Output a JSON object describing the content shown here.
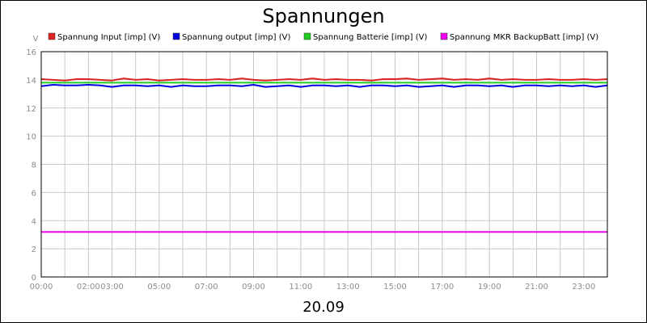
{
  "chart_data": {
    "type": "line",
    "title": "Spannungen",
    "xlabel": "20.09",
    "ylabel": "V",
    "xlim": [
      0,
      24
    ],
    "ylim": [
      0,
      16
    ],
    "grid": true,
    "legend_position": "top",
    "y_ticks": [
      0,
      2,
      4,
      6,
      8,
      10,
      12,
      14,
      16
    ],
    "x_ticks": [
      {
        "label": "00:00",
        "value": 0
      },
      {
        "label": "02:00",
        "value": 2
      },
      {
        "label": "03:00",
        "value": 3
      },
      {
        "label": "05:00",
        "value": 5
      },
      {
        "label": "07:00",
        "value": 7
      },
      {
        "label": "09:00",
        "value": 9
      },
      {
        "label": "11:00",
        "value": 11
      },
      {
        "label": "13:00",
        "value": 13
      },
      {
        "label": "15:00",
        "value": 15
      },
      {
        "label": "17:00",
        "value": 17
      },
      {
        "label": "19:00",
        "value": 19
      },
      {
        "label": "21:00",
        "value": 21
      },
      {
        "label": "23:00",
        "value": 23
      }
    ],
    "x_hours": [
      0,
      0.5,
      1,
      1.5,
      2,
      2.5,
      3,
      3.5,
      4,
      4.5,
      5,
      5.5,
      6,
      6.5,
      7,
      7.5,
      8,
      8.5,
      9,
      9.5,
      10,
      10.5,
      11,
      11.5,
      12,
      12.5,
      13,
      13.5,
      14,
      14.5,
      15,
      15.5,
      16,
      16.5,
      17,
      17.5,
      18,
      18.5,
      19,
      19.5,
      20,
      20.5,
      21,
      21.5,
      22,
      22.5,
      23,
      23.5,
      24
    ],
    "series": [
      {
        "name": "Spannung Input [imp] (V)",
        "color": "#dd2222",
        "values": [
          14.05,
          14.0,
          13.95,
          14.05,
          14.05,
          14.0,
          13.95,
          14.1,
          14.0,
          14.05,
          13.95,
          14.0,
          14.05,
          14.0,
          14.0,
          14.05,
          14.0,
          14.1,
          14.0,
          13.95,
          14.0,
          14.05,
          14.0,
          14.1,
          14.0,
          14.05,
          14.0,
          14.0,
          13.95,
          14.05,
          14.05,
          14.1,
          14.0,
          14.05,
          14.1,
          14.0,
          14.05,
          14.0,
          14.1,
          14.0,
          14.05,
          14.0,
          14.0,
          14.05,
          14.0,
          14.0,
          14.05,
          14.0,
          14.05
        ]
      },
      {
        "name": "Spannung output [imp] (V)",
        "color": "#0000dd",
        "values": [
          13.55,
          13.65,
          13.6,
          13.6,
          13.65,
          13.6,
          13.5,
          13.6,
          13.6,
          13.55,
          13.6,
          13.5,
          13.6,
          13.55,
          13.55,
          13.6,
          13.6,
          13.55,
          13.65,
          13.5,
          13.55,
          13.6,
          13.5,
          13.6,
          13.6,
          13.55,
          13.6,
          13.5,
          13.6,
          13.6,
          13.55,
          13.6,
          13.5,
          13.55,
          13.6,
          13.5,
          13.6,
          13.6,
          13.55,
          13.6,
          13.5,
          13.6,
          13.6,
          13.55,
          13.6,
          13.55,
          13.6,
          13.5,
          13.6
        ]
      },
      {
        "name": "Spannung Batterie [imp] (V)",
        "color": "#22cc22",
        "values": [
          13.8,
          13.8,
          13.8,
          13.8,
          13.8,
          13.8,
          13.8,
          13.8,
          13.8,
          13.8,
          13.8,
          13.8,
          13.8,
          13.8,
          13.8,
          13.8,
          13.8,
          13.8,
          13.8,
          13.8,
          13.8,
          13.8,
          13.8,
          13.8,
          13.8,
          13.8,
          13.8,
          13.8,
          13.8,
          13.8,
          13.8,
          13.8,
          13.8,
          13.8,
          13.8,
          13.8,
          13.8,
          13.8,
          13.8,
          13.8,
          13.8,
          13.8,
          13.8,
          13.8,
          13.8,
          13.8,
          13.8,
          13.8,
          13.8
        ]
      },
      {
        "name": "Spannung MKR BackupBatt [imp] (V)",
        "color": "#ee00ee",
        "values": [
          3.2,
          3.2,
          3.2,
          3.2,
          3.2,
          3.2,
          3.2,
          3.2,
          3.2,
          3.2,
          3.2,
          3.2,
          3.2,
          3.2,
          3.2,
          3.2,
          3.2,
          3.2,
          3.2,
          3.2,
          3.2,
          3.2,
          3.2,
          3.2,
          3.2,
          3.2,
          3.2,
          3.2,
          3.2,
          3.2,
          3.2,
          3.2,
          3.2,
          3.2,
          3.2,
          3.2,
          3.2,
          3.2,
          3.2,
          3.2,
          3.2,
          3.2,
          3.2,
          3.2,
          3.2,
          3.2,
          3.2,
          3.2,
          3.2
        ]
      }
    ]
  }
}
